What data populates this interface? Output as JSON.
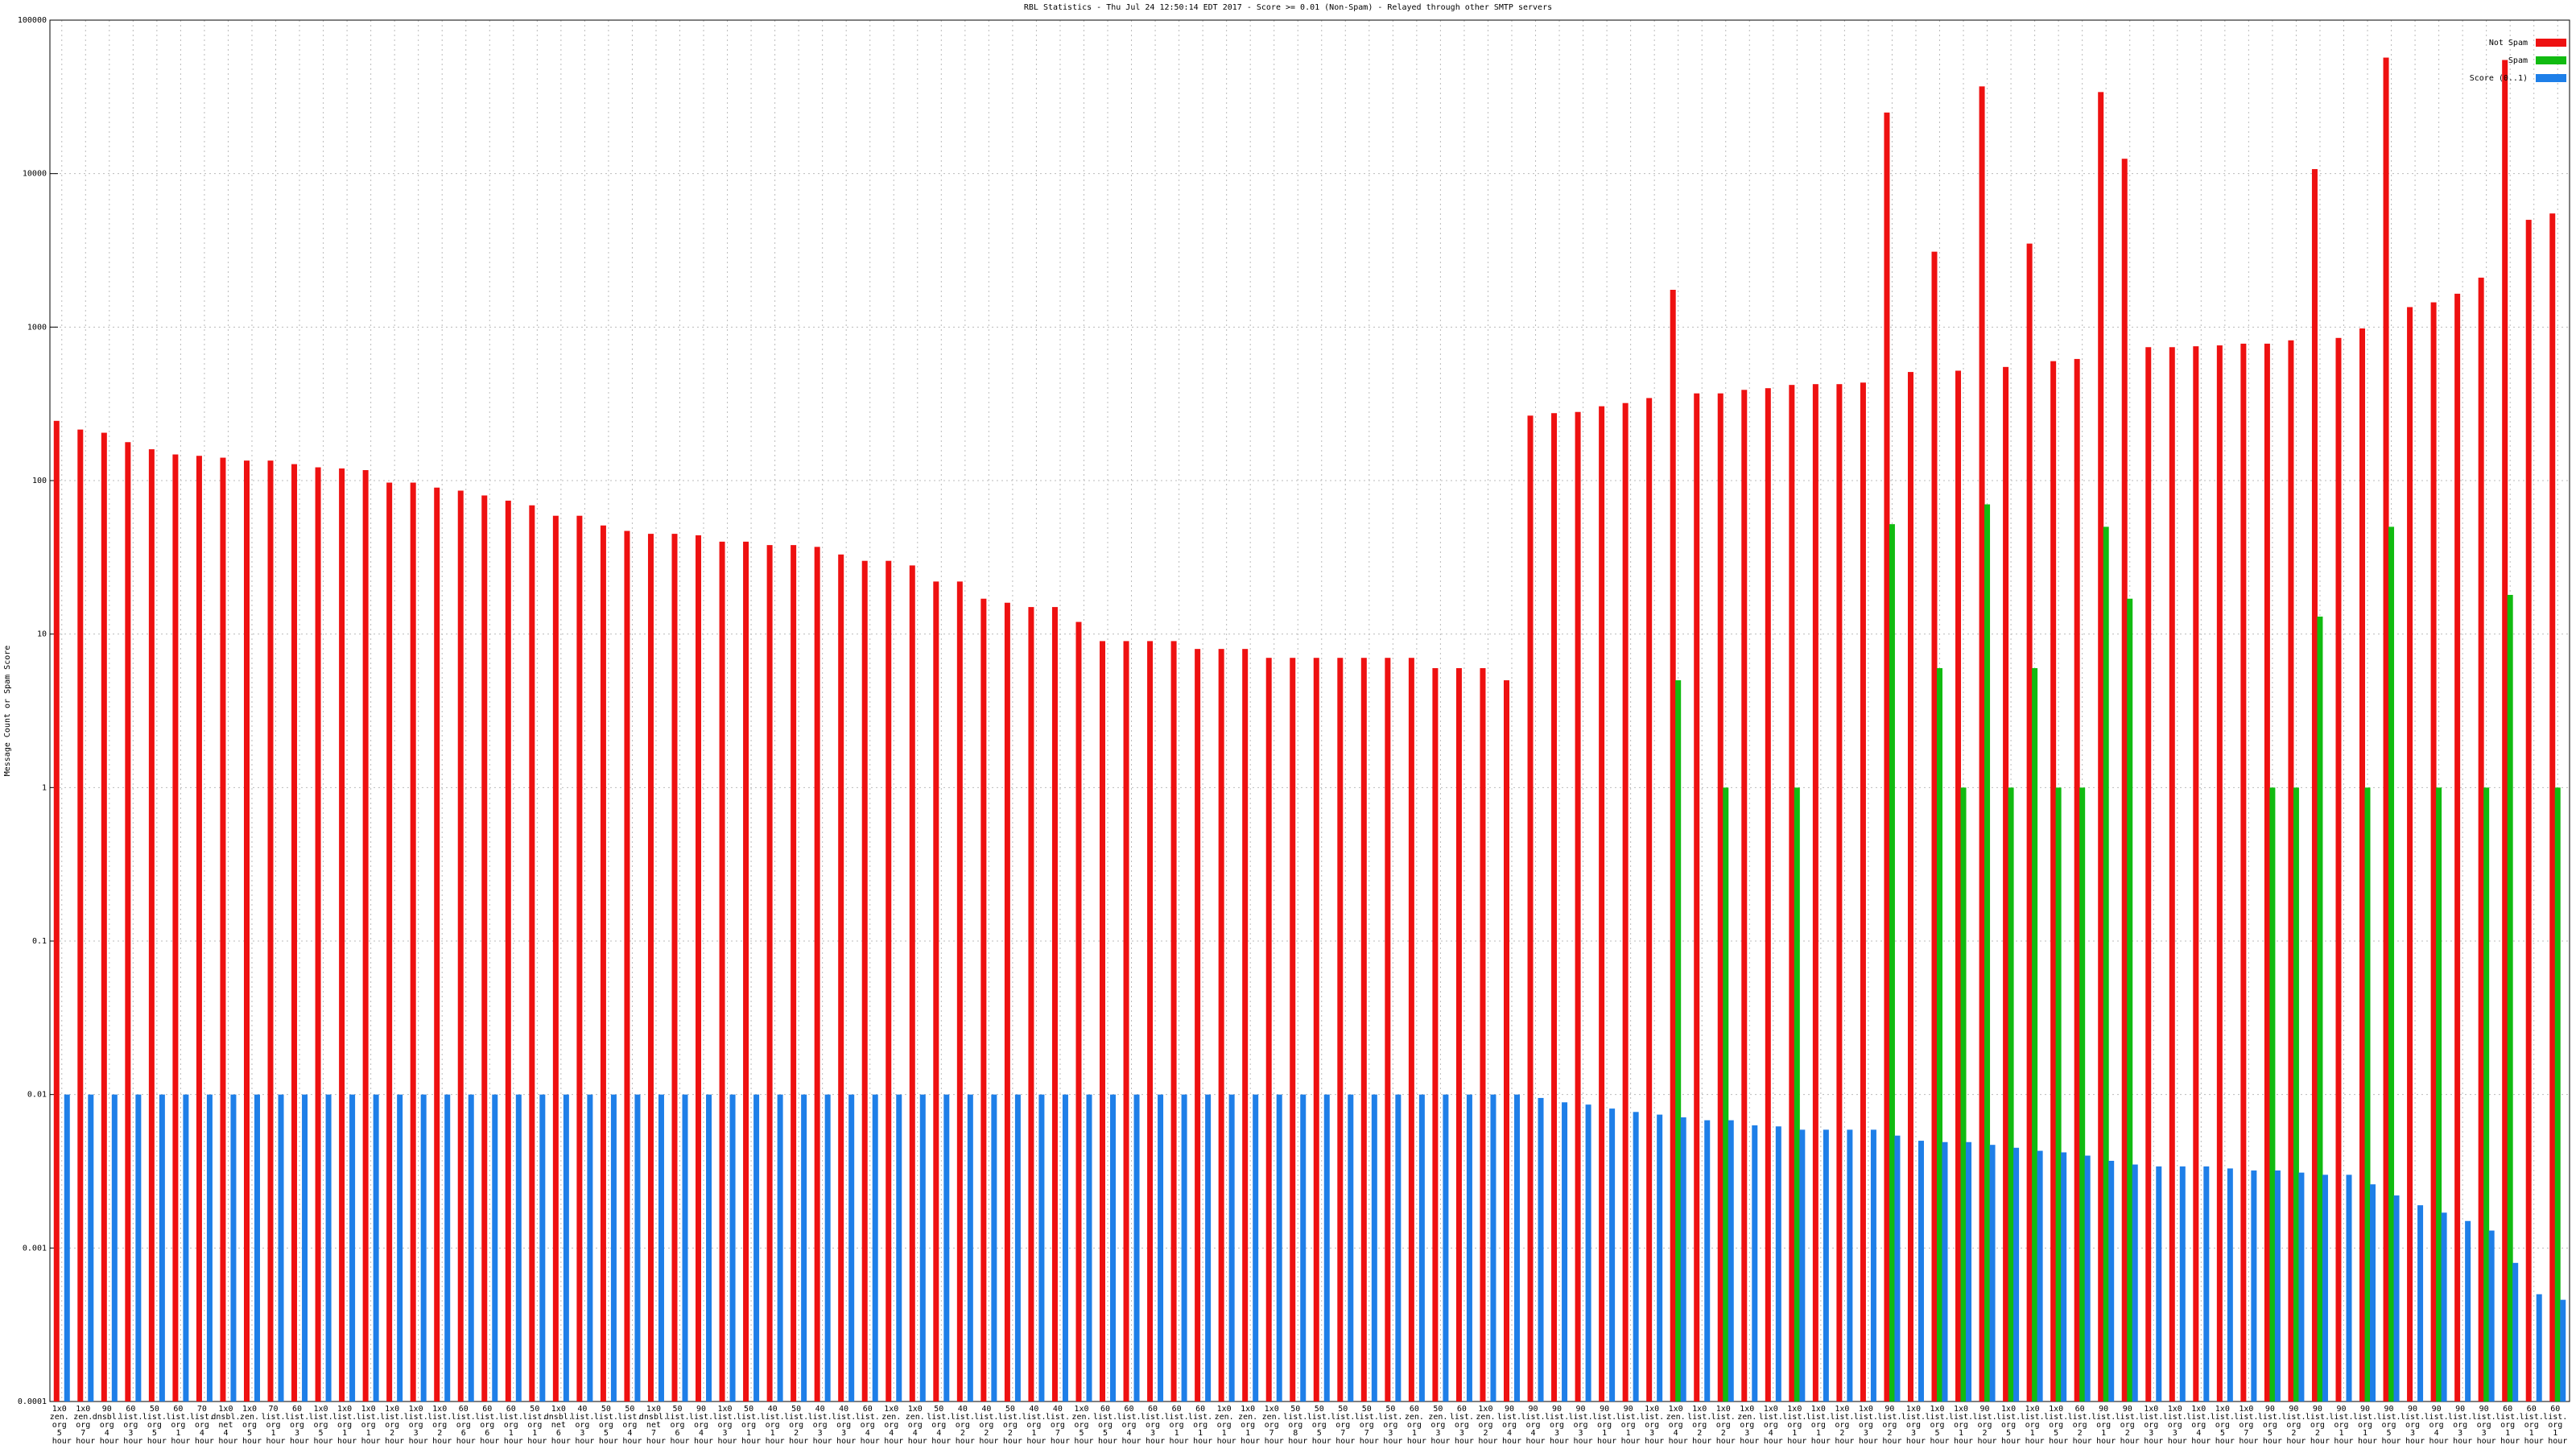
{
  "chart_data": {
    "type": "bar",
    "title": "RBL Statistics - Thu Jul 24 12:50:14 EDT 2017 - Score >= 0.01 (Non-Spam) - Relayed through other SMTP servers",
    "y_label": "Message Count or Spam Score",
    "log_scale": true,
    "grid": true,
    "legend": "upper right",
    "ylim": [
      0.0001,
      100000
    ],
    "yticks": [
      0.0001,
      0.001,
      0.01,
      0.1,
      1,
      10,
      100,
      1000,
      10000,
      100000
    ],
    "categories": [
      "1x0 zen. org 5 hour",
      "1x0 zen. org 7 hour",
      "90 dnsbl. org 4 hour",
      "60 list. org 3 hour",
      "50 list. org 5 hour",
      "60 list. org 1 hour",
      "70 list. org 4 hour",
      "1x0 dnsbl. net 4 hour",
      "1x0 zen. org 5 hour",
      "70 list. org 1 hour",
      "60 list. org 3 hour",
      "1x0 list. org 5 hour",
      "1x0 list. org 1 hour",
      "1x0 list. org 1 hour",
      "1x0 list. org 2 hour",
      "1x0 list. org 3 hour",
      "1x0 list. org 2 hour",
      "60 list. org 6 hour",
      "60 list. org 6 hour",
      "60 list. org 1 hour",
      "50 list. org 1 hour",
      "1x0 dnsbl. net 6 hour",
      "40 list. org 3 hour",
      "50 list. org 5 hour",
      "50 list. org 4 hour",
      "1x0 dnsbl. net 7 hour",
      "50 list. org 6 hour",
      "90 list. org 4 hour",
      "1x0 list. org 3 hour",
      "50 list. org 1 hour",
      "40 list. org 1 hour",
      "50 list. org 2 hour",
      "40 list. org 3 hour",
      "40 list. org 3 hour",
      "60 list. org 4 hour",
      "1x0 zen. org 4 hour",
      "1x0 zen. org 4 hour",
      "50 list. org 4 hour",
      "40 list. org 2 hour",
      "40 list. org 2 hour",
      "50 list. org 2 hour",
      "40 list. org 1 hour",
      "40 list. org 7 hour",
      "1x0 zen. org 5 hour",
      "60 list. org 5 hour",
      "60 list. org 4 hour",
      "60 list. org 3 hour",
      "60 list. org 1 hour",
      "60 list. org 1 hour",
      "1x0 zen. org 1 hour",
      "1x0 zen. org 1 hour",
      "1x0 zen. org 7 hour",
      "50 list. org 8 hour",
      "50 list. org 5 hour",
      "50 list. org 7 hour",
      "50 list. org 7 hour",
      "50 list. org 3 hour",
      "60 zen. org 1 hour",
      "50 zen. org 3 hour",
      "60 list. org 3 hour",
      "1x0 zen. org 2 hour",
      "90 list. org 4 hour",
      "90 list. org 4 hour",
      "90 list. org 3 hour",
      "90 list. org 3 hour",
      "90 list. org 1 hour",
      "90 list. org 1 hour",
      "1x0 list. org 3 hour",
      "1x0 zen. org 4 hour",
      "1x0 list. org 2 hour",
      "1x0 list. org 2 hour",
      "1x0 zen. org 3 hour",
      "1x0 list. org 4 hour",
      "1x0 list. org 1 hour",
      "1x0 list. org 1 hour",
      "1x0 list. org 2 hour",
      "1x0 list. org 3 hour",
      "90 list. org 2 hour",
      "1x0 list. org 3 hour",
      "1x0 list. org 5 hour",
      "1x0 list. org 1 hour",
      "90 list. org 2 hour",
      "1x0 list. org 5 hour",
      "1x0 list. org 1 hour",
      "1x0 list. org 5 hour",
      "60 list. org 2 hour",
      "90 list. org 1 hour",
      "90 list. org 2 hour",
      "1x0 list. org 3 hour",
      "1x0 list. org 3 hour",
      "1x0 list. org 4 hour",
      "1x0 list. org 5 hour",
      "1x0 list. org 7 hour",
      "90 list. org 5 hour",
      "90 list. org 2 hour",
      "90 list. org 2 hour",
      "90 list. org 1 hour",
      "90 list. org 1 hour",
      "90 list. org 5 hour",
      "90 list. org 3 hour",
      "90 list. org 4 hour",
      "90 list. org 3 hour",
      "90 list. org 3 hour",
      "60 list. org 1 hour",
      "60 list. org 1 hour",
      "60 list. org 1 hour"
    ],
    "series": [
      {
        "name": "Not Spam",
        "color": "#ee1111",
        "values": [
          245,
          215,
          205,
          178,
          160,
          148,
          145,
          141,
          135,
          135,
          128,
          122,
          120,
          117,
          97,
          97,
          90,
          86,
          80,
          74,
          69,
          59,
          59,
          51,
          47,
          45,
          45,
          44,
          40,
          40,
          38,
          38,
          37,
          33,
          30,
          30,
          28,
          22,
          22,
          17,
          16,
          15,
          15,
          12,
          9,
          9,
          9,
          9,
          8,
          8,
          8,
          7,
          7,
          7,
          7,
          7,
          7,
          7,
          6,
          6,
          6,
          5,
          265,
          275,
          280,
          305,
          320,
          345,
          1750,
          370,
          370,
          390,
          400,
          420,
          425,
          425,
          435,
          25000,
          510,
          3100,
          520,
          37000,
          550,
          3500,
          600,
          620,
          34000,
          12500,
          740,
          740,
          750,
          760,
          780,
          780,
          820,
          10700,
          850,
          980,
          57000,
          1350,
          1450,
          1650,
          2100,
          55000,
          5000,
          5500
        ]
      },
      {
        "name": "Spam",
        "color": "#11bb11",
        "values": [
          0,
          0,
          0,
          0,
          0,
          0,
          0,
          0,
          0,
          0,
          0,
          0,
          0,
          0,
          0,
          0,
          0,
          0,
          0,
          0,
          0,
          0,
          0,
          0,
          0,
          0,
          0,
          0,
          0,
          0,
          0,
          0,
          0,
          0,
          0,
          0,
          0,
          0,
          0,
          0,
          0,
          0,
          0,
          0,
          0,
          0,
          0,
          0,
          0,
          0,
          0,
          0,
          0,
          0,
          0,
          0,
          0,
          0,
          0,
          0,
          0,
          0,
          0,
          0,
          0,
          0,
          0,
          0,
          5,
          0,
          1,
          0,
          0,
          1,
          0,
          0,
          0,
          52,
          0,
          6,
          1,
          70,
          1,
          6,
          1,
          1,
          50,
          17,
          0,
          0,
          0,
          0,
          0,
          1,
          1,
          13,
          0,
          1,
          50,
          0,
          1,
          0,
          1,
          18,
          0,
          1
        ]
      },
      {
        "name": "Score (0..1)",
        "color": "#1e7fe8",
        "values": [
          0.01,
          0.01,
          0.01,
          0.01,
          0.01,
          0.01,
          0.01,
          0.01,
          0.01,
          0.01,
          0.01,
          0.01,
          0.01,
          0.01,
          0.01,
          0.01,
          0.01,
          0.01,
          0.01,
          0.01,
          0.01,
          0.01,
          0.01,
          0.01,
          0.01,
          0.01,
          0.01,
          0.01,
          0.01,
          0.01,
          0.01,
          0.01,
          0.01,
          0.01,
          0.01,
          0.01,
          0.01,
          0.01,
          0.01,
          0.01,
          0.01,
          0.01,
          0.01,
          0.01,
          0.01,
          0.01,
          0.01,
          0.01,
          0.01,
          0.01,
          0.01,
          0.01,
          0.01,
          0.01,
          0.01,
          0.01,
          0.01,
          0.01,
          0.01,
          0.01,
          0.01,
          0.01,
          0.0095,
          0.0089,
          0.0086,
          0.0081,
          0.0077,
          0.0074,
          0.0071,
          0.0068,
          0.0068,
          0.0063,
          0.0062,
          0.0059,
          0.0059,
          0.0059,
          0.0059,
          0.0054,
          0.005,
          0.0049,
          0.0049,
          0.0047,
          0.0045,
          0.0043,
          0.0042,
          0.004,
          0.0037,
          0.0035,
          0.0034,
          0.0034,
          0.0034,
          0.0033,
          0.0032,
          0.0032,
          0.0031,
          0.003,
          0.003,
          0.0026,
          0.0022,
          0.0019,
          0.0017,
          0.0015,
          0.0013,
          0.0008,
          0.0005,
          0.00046
        ]
      }
    ]
  }
}
